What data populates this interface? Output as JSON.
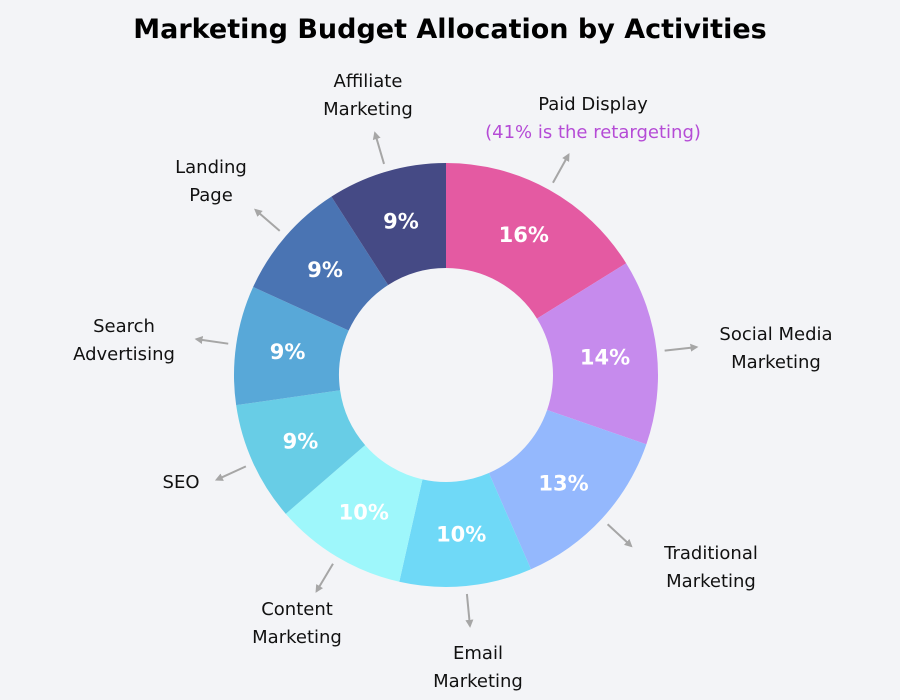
{
  "chart_data": {
    "type": "pie",
    "donut": true,
    "title": "Marketing Budget Allocation by Activities",
    "slices": [
      {
        "label": [
          "Paid Display"
        ],
        "note": "(41% is the retargeting)",
        "value": 16,
        "value_label": "16%",
        "color": "#e45aa2"
      },
      {
        "label": [
          "Social Media",
          "Marketing"
        ],
        "value": 14,
        "value_label": "14%",
        "color": "#c68bed"
      },
      {
        "label": [
          "Traditional",
          "Marketing"
        ],
        "value": 13,
        "value_label": "13%",
        "color": "#94b8fd"
      },
      {
        "label": [
          "Email",
          "Marketing"
        ],
        "value": 10,
        "value_label": "10%",
        "color": "#6fd9f7"
      },
      {
        "label": [
          "Content",
          "Marketing"
        ],
        "value": 10,
        "value_label": "10%",
        "color": "#9ef7fb"
      },
      {
        "label": [
          "SEO"
        ],
        "value": 9,
        "value_label": "9%",
        "color": "#68cde6"
      },
      {
        "label": [
          "Search",
          "Advertising"
        ],
        "value": 9,
        "value_label": "9%",
        "color": "#58a8d8"
      },
      {
        "label": [
          "Landing",
          "Page"
        ],
        "value": 9,
        "value_label": "9%",
        "color": "#4a74b3"
      },
      {
        "label": [
          "Affiliate",
          "Marketing"
        ],
        "value": 9,
        "value_label": "9%",
        "color": "#454a85"
      }
    ]
  }
}
